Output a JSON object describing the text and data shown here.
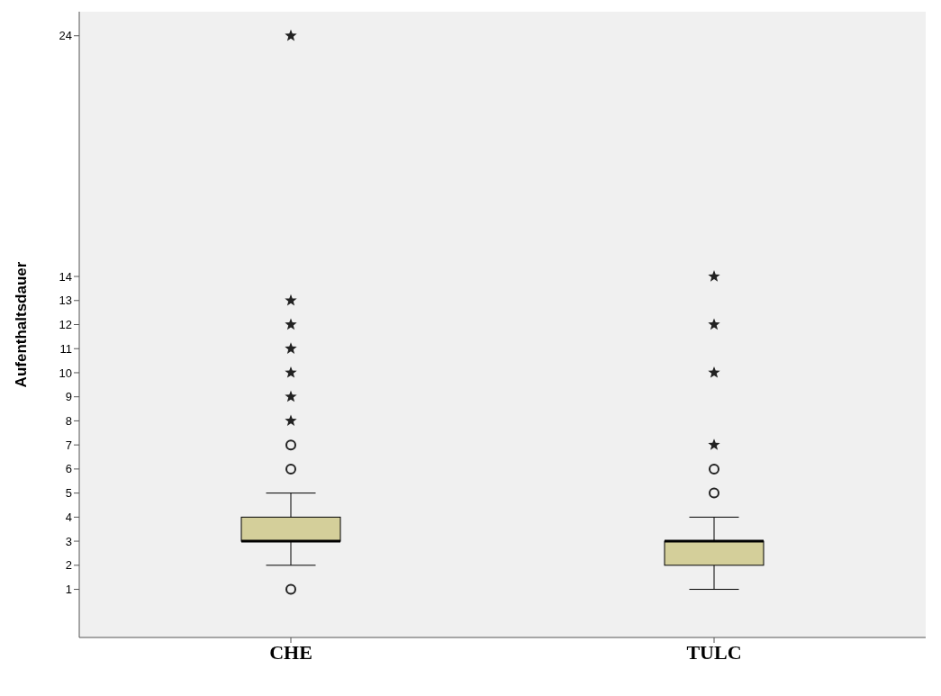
{
  "chart_data": {
    "type": "box",
    "ylabel": "Aufenthaltsdauer",
    "categories": [
      "CHE",
      "TULC"
    ],
    "color": "#d4cf9a",
    "boxes": [
      {
        "low": 2,
        "q1": 3,
        "median": 3,
        "q3": 4,
        "high": 5,
        "outliers": [
          1,
          6,
          7,
          8,
          9,
          10,
          11,
          12,
          13,
          24
        ]
      },
      {
        "low": 1,
        "q1": 2,
        "median": 3,
        "q3": 3,
        "high": 4,
        "outliers": [
          5,
          6,
          7,
          10,
          12,
          14
        ]
      }
    ],
    "ylim": [
      -1,
      25
    ],
    "yticks": [
      1,
      2,
      3,
      4,
      5,
      6,
      7,
      8,
      9,
      10,
      11,
      12,
      13,
      14,
      24
    ],
    "grid": false
  }
}
